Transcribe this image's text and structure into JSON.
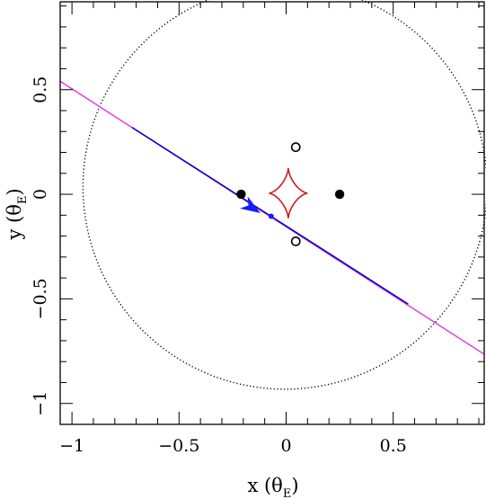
{
  "chart_data": {
    "type": "scatter",
    "xlabel": "x (θ",
    "xlabel_sub": "E",
    "xlabel_end": ")",
    "ylabel": "y (θ",
    "ylabel_sub": "E",
    "ylabel_end": ")",
    "xlim": [
      -1.055,
      0.925
    ],
    "ylim": [
      -1.1,
      0.92
    ],
    "x_ticks": [
      {
        "value": -1,
        "label": "−1"
      },
      {
        "value": -0.5,
        "label": "−0.5"
      },
      {
        "value": 0,
        "label": "0"
      },
      {
        "value": 0.5,
        "label": "0.5"
      }
    ],
    "y_ticks": [
      {
        "value": -1,
        "label": "−1"
      },
      {
        "value": -0.5,
        "label": "−0.5"
      },
      {
        "value": 0,
        "label": "0"
      },
      {
        "value": 0.5,
        "label": "0.5"
      }
    ],
    "circle": {
      "center": [
        -0.005,
        0.035
      ],
      "radius": 0.955
    },
    "trajectory": {
      "magenta_start": [
        -1.055,
        0.54
      ],
      "magenta_end": [
        0.925,
        -0.765
      ],
      "blue_start": [
        -0.72,
        0.32
      ],
      "blue_end": [
        0.57,
        -0.525
      ],
      "arrow_tip": [
        -0.12,
        -0.09
      ],
      "source_point": [
        -0.07,
        -0.105
      ]
    },
    "caustic": {
      "center": [
        0.01,
        0.005
      ],
      "half_width": 0.09,
      "half_height": 0.12
    },
    "images_filled": [
      {
        "x": -0.21,
        "y": 0.0
      },
      {
        "x": 0.25,
        "y": 0.0
      }
    ],
    "images_open": [
      {
        "x": 0.045,
        "y": 0.225
      },
      {
        "x": 0.045,
        "y": -0.225
      }
    ],
    "colors": {
      "frame": "#000000",
      "circle": "#000000",
      "magenta_line": "#e040e0",
      "blue_line": "#0000cc",
      "arrow": "#1a1aff",
      "caustic": "#cc1a1a",
      "images": "#000000"
    }
  }
}
